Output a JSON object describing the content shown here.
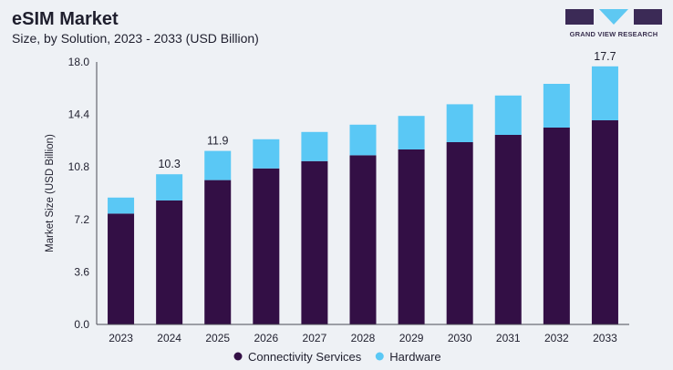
{
  "header": {
    "title": "eSIM Market",
    "subtitle": "Size, by Solution, 2023 - 2033 (USD Billion)"
  },
  "brand": {
    "name": "GRAND VIEW RESEARCH",
    "logo_icon": "grand-view-research-logo",
    "logo_color": "#3b2a56",
    "logo_accent": "#5ec8f2"
  },
  "chart_data": {
    "type": "bar",
    "stacked": true,
    "categories": [
      "2023",
      "2024",
      "2025",
      "2026",
      "2027",
      "2028",
      "2029",
      "2030",
      "2031",
      "2032",
      "2033"
    ],
    "series": [
      {
        "name": "Connectivity Services",
        "color": "#330f45",
        "values": [
          7.6,
          8.5,
          9.9,
          10.7,
          11.2,
          11.6,
          12.0,
          12.5,
          13.0,
          13.5,
          14.0
        ]
      },
      {
        "name": "Hardware",
        "color": "#5ac8f5",
        "values": [
          1.1,
          1.8,
          2.0,
          2.0,
          2.0,
          2.1,
          2.3,
          2.6,
          2.7,
          3.0,
          3.7
        ]
      }
    ],
    "data_labels": [
      {
        "category": "2024",
        "text": "10.3"
      },
      {
        "category": "2025",
        "text": "11.9"
      },
      {
        "category": "2033",
        "text": "17.7"
      }
    ],
    "ylabel": "Market Size (USD Billion)",
    "yticks": [
      "0.0",
      "3.6",
      "7.2",
      "10.8",
      "14.4",
      "18.0"
    ],
    "ylim": [
      0,
      18
    ],
    "legend_position": "bottom",
    "grid": false
  }
}
